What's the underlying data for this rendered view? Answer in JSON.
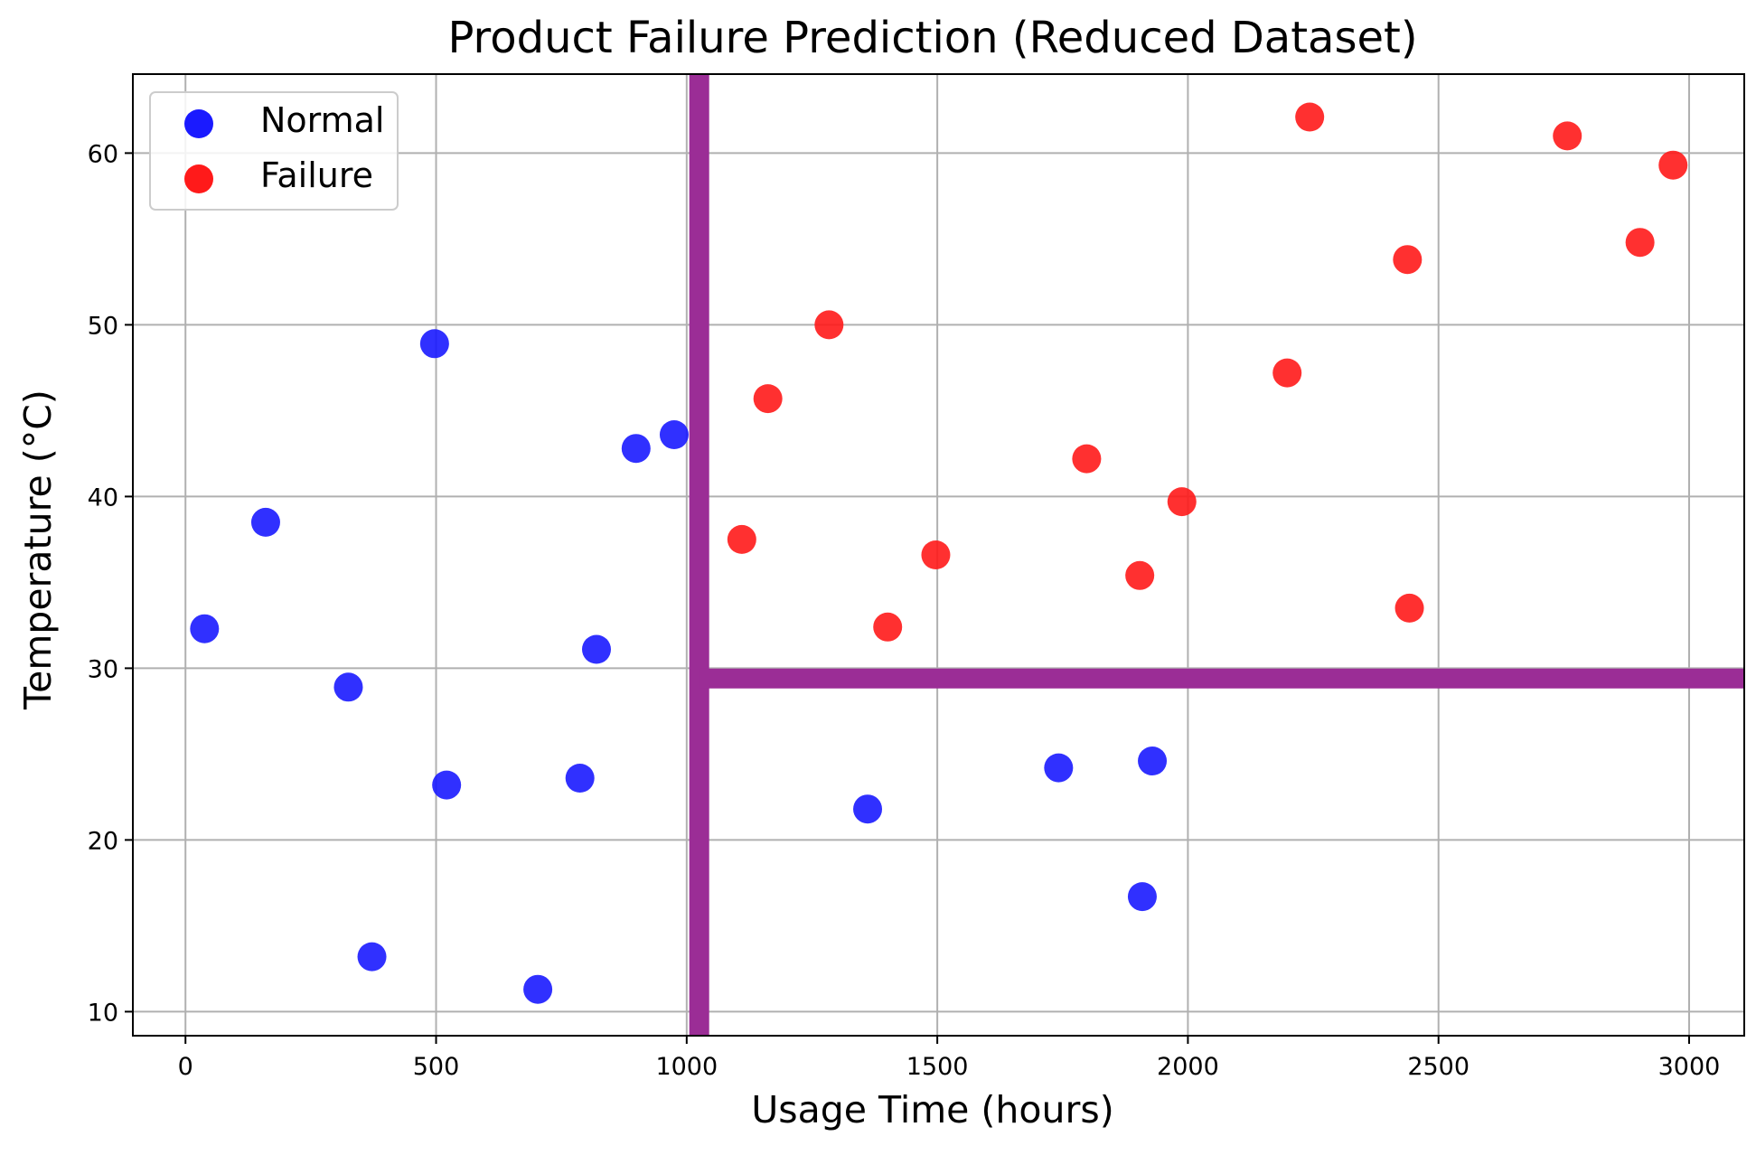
{
  "chart_data": {
    "type": "scatter",
    "title": "Product Failure Prediction (Reduced Dataset)",
    "xlabel": "Usage Time (hours)",
    "ylabel": "Temperature (°C)",
    "xlim": [
      -105,
      3110
    ],
    "ylim": [
      8.6,
      64.6
    ],
    "xticks": [
      0,
      500,
      1000,
      1500,
      2000,
      2500,
      3000
    ],
    "yticks": [
      10,
      20,
      30,
      40,
      50,
      60
    ],
    "grid": true,
    "legend_position": "top-left",
    "series": [
      {
        "name": "Normal",
        "color": "#1a1aff",
        "points": [
          [
            38,
            32.3
          ],
          [
            160,
            38.5
          ],
          [
            325,
            28.9
          ],
          [
            372,
            13.2
          ],
          [
            497,
            48.9
          ],
          [
            521,
            23.2
          ],
          [
            703,
            11.3
          ],
          [
            787,
            23.6
          ],
          [
            820,
            31.1
          ],
          [
            899,
            42.8
          ],
          [
            975,
            43.6
          ],
          [
            1361,
            21.8
          ],
          [
            1742,
            24.2
          ],
          [
            1909,
            16.7
          ],
          [
            1929,
            24.6
          ]
        ]
      },
      {
        "name": "Failure",
        "color": "#ff1a1a",
        "points": [
          [
            1110,
            37.5
          ],
          [
            1162,
            45.7
          ],
          [
            1284,
            50.0
          ],
          [
            1401,
            32.4
          ],
          [
            1497,
            36.6
          ],
          [
            1798,
            42.2
          ],
          [
            1904,
            35.4
          ],
          [
            1988,
            39.7
          ],
          [
            2198,
            47.2
          ],
          [
            2243,
            62.1
          ],
          [
            2438,
            53.8
          ],
          [
            2442,
            33.5
          ],
          [
            2757,
            61.0
          ],
          [
            2902,
            54.8
          ],
          [
            2968,
            59.3
          ]
        ]
      }
    ],
    "overlay": {
      "color": "#9b2d96",
      "vertical_line_x": 1025,
      "horizontal_line_y": 29.4,
      "horizontal_line_x_start": 1025
    }
  }
}
